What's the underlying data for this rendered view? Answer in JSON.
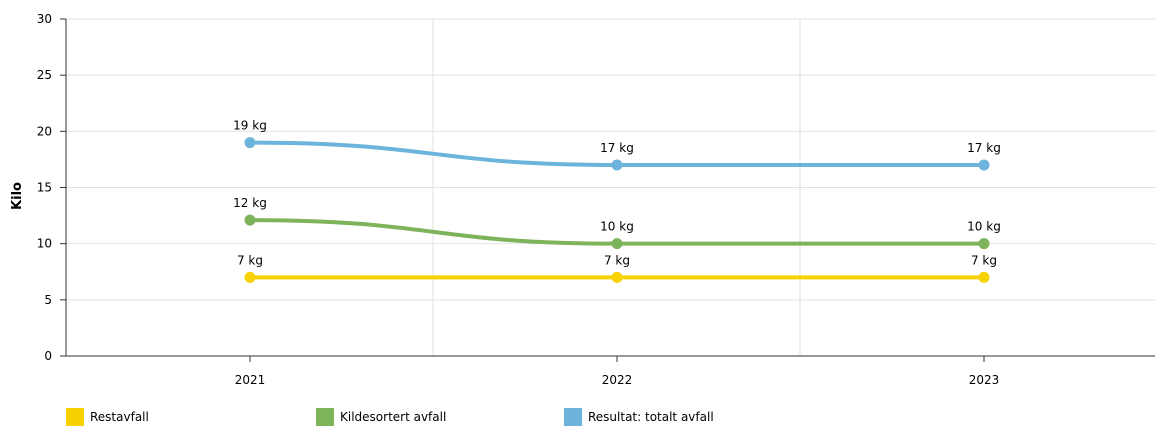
{
  "chart_data": {
    "type": "line",
    "ylabel": "Kilo",
    "xlabel": "",
    "categories": [
      "2021",
      "2022",
      "2023"
    ],
    "ylim": [
      0,
      30
    ],
    "yticks": [
      0,
      5,
      10,
      15,
      20,
      25,
      30
    ],
    "grid": true,
    "legend_position": "bottom-left",
    "series": [
      {
        "name": "Restavfall",
        "color": "#f7d100",
        "values": [
          7,
          7,
          7
        ],
        "labels": [
          "7 kg",
          "7 kg",
          "7 kg"
        ]
      },
      {
        "name": "Kildesortert avfall",
        "color": "#7db35a",
        "values": [
          12.1,
          10,
          10
        ],
        "labels": [
          "12 kg",
          "10 kg",
          "10 kg"
        ]
      },
      {
        "name": "Resultat: totalt avfall",
        "color": "#6cb4dc",
        "values": [
          19,
          17,
          17
        ],
        "labels": [
          "19 kg",
          "17 kg",
          "17 kg"
        ]
      }
    ]
  }
}
